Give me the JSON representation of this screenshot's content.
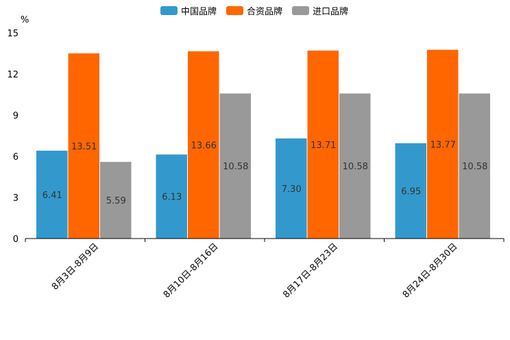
{
  "chart_data": {
    "type": "bar",
    "unit_label": "%",
    "categories": [
      "8月3日-8月9日",
      "8月10日-8月16日",
      "8月17日-8月23日",
      "8月24日-8月30日"
    ],
    "series": [
      {
        "name": "中国品牌",
        "color": "#3399cc",
        "values": [
          6.41,
          6.13,
          7.3,
          6.95
        ],
        "labels": [
          "6.41",
          "6.13",
          "7.30",
          "6.95"
        ]
      },
      {
        "name": "合资品牌",
        "color": "#ff6600",
        "values": [
          13.51,
          13.66,
          13.71,
          13.77
        ],
        "labels": [
          "13.51",
          "13.66",
          "13.71",
          "13.77"
        ]
      },
      {
        "name": "进口品牌",
        "color": "#999999",
        "values": [
          5.59,
          10.58,
          10.58,
          10.58
        ],
        "labels": [
          "5.59",
          "10.58",
          "10.58",
          "10.58"
        ]
      }
    ],
    "ylim": [
      0,
      15
    ],
    "yticks": [
      0,
      3,
      6,
      9,
      12,
      15
    ],
    "legend_position": "top-center",
    "grid": false
  }
}
